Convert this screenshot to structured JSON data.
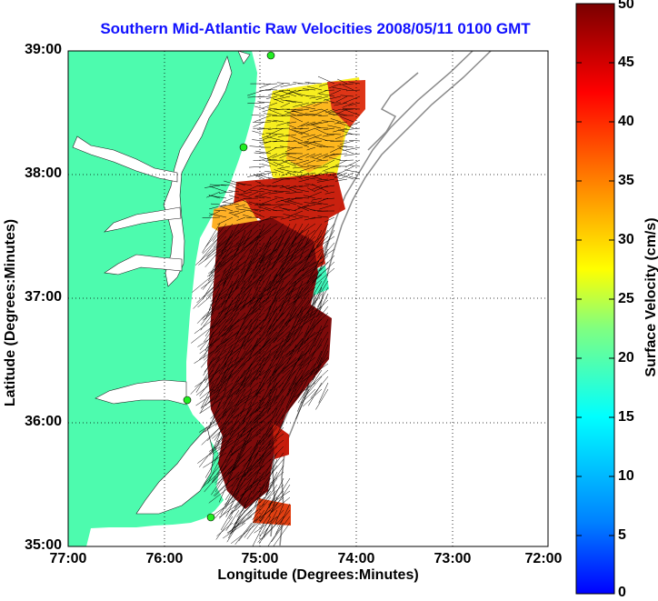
{
  "title": "Southern Mid-Atlantic Raw Velocities 2008/05/11 0100 GMT",
  "xlabel": "Longitude (Degrees:Minutes)",
  "ylabel": "Latitude (Degrees:Minutes)",
  "colorbar_label": "Surface Velocity (cm/s)",
  "xticks": [
    "77:00",
    "76:00",
    "75:00",
    "74:00",
    "73:00",
    "72:00"
  ],
  "yticks": [
    "39:00",
    "38:00",
    "37:00",
    "36:00",
    "35:00"
  ],
  "colorbar_ticks": [
    "50",
    "45",
    "40",
    "35",
    "30",
    "25",
    "20",
    "15",
    "10",
    "5",
    "0"
  ],
  "colors": {
    "land": "#4dfbae",
    "title": "#1010ff",
    "site_marker": "#22ee22"
  },
  "chart_data": {
    "type": "map",
    "title": "Southern Mid-Atlantic Raw Velocities 2008/05/11 0100 GMT",
    "xlabel": "Longitude (Degrees:Minutes)",
    "ylabel": "Latitude (Degrees:Minutes)",
    "xlim": [
      -77.0,
      -72.0
    ],
    "ylim": [
      35.0,
      39.0
    ],
    "grid": "dotted",
    "colorbar": {
      "label": "Surface Velocity (cm/s)",
      "range": [
        0,
        50
      ],
      "colormap": "jet"
    }
  }
}
